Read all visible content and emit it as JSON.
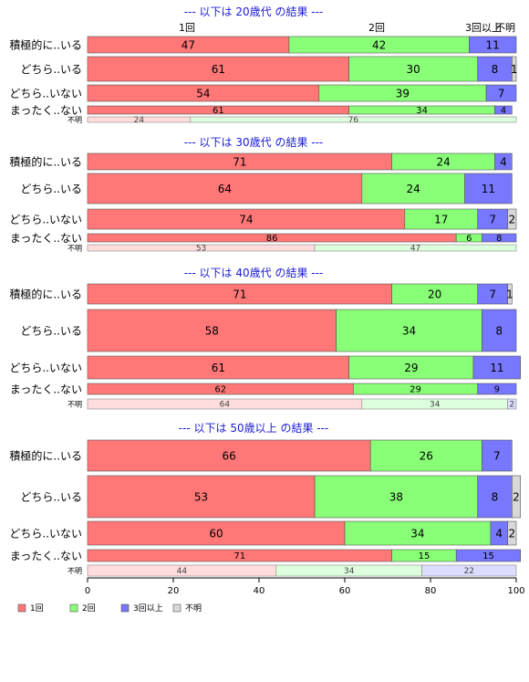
{
  "chart_data": {
    "type": "bar",
    "stacked": true,
    "orientation": "horizontal",
    "xlim": [
      0,
      100
    ],
    "xticks": [
      "0",
      "20",
      "40",
      "60",
      "80",
      "100"
    ],
    "grid": false,
    "legend_position": "bottom-left",
    "series_names": [
      "1回",
      "2回",
      "3回以上",
      "不明"
    ],
    "series_colors": [
      "#ff7777",
      "#88ff77",
      "#7777ff",
      "#d8d8d8"
    ],
    "light_colors": [
      "#ffdddd",
      "#ddffdd",
      "#ddddff",
      "#eeeeee"
    ],
    "top_series_labels": [
      "1回",
      "2回",
      "3回以上",
      "不明"
    ],
    "groups": [
      {
        "title": "--- 以下は 20歳代 の結果 ---",
        "rows": [
          {
            "label": "積極的に..いる",
            "values": [
              47,
              42,
              11,
              0
            ]
          },
          {
            "label": "どちら..いる",
            "values": [
              61,
              30,
              8,
              1
            ]
          },
          {
            "label": "どちら..いない",
            "values": [
              54,
              39,
              7,
              0
            ]
          },
          {
            "label": "まったく..ない",
            "values": [
              61,
              34,
              4,
              0
            ]
          },
          {
            "label": "不明",
            "values": [
              24,
              76,
              0,
              0
            ]
          }
        ]
      },
      {
        "title": "--- 以下は 30歳代 の結果 ---",
        "rows": [
          {
            "label": "積極的に..いる",
            "values": [
              71,
              24,
              4,
              0
            ]
          },
          {
            "label": "どちら..いる",
            "values": [
              64,
              24,
              11,
              0
            ]
          },
          {
            "label": "どちら..いない",
            "values": [
              74,
              17,
              7,
              2
            ]
          },
          {
            "label": "まったく..ない",
            "values": [
              86,
              6,
              8,
              0
            ]
          },
          {
            "label": "不明",
            "values": [
              53,
              47,
              0,
              0
            ]
          }
        ]
      },
      {
        "title": "--- 以下は 40歳代 の結果 ---",
        "rows": [
          {
            "label": "積極的に..いる",
            "values": [
              71,
              20,
              7,
              1
            ]
          },
          {
            "label": "どちら..いる",
            "values": [
              58,
              34,
              8,
              0
            ]
          },
          {
            "label": "どちら..いない",
            "values": [
              61,
              29,
              11,
              0
            ]
          },
          {
            "label": "まったく..ない",
            "values": [
              62,
              29,
              9,
              0
            ]
          },
          {
            "label": "不明",
            "values": [
              64,
              34,
              2,
              0
            ]
          }
        ]
      },
      {
        "title": "--- 以下は 50歳以上 の結果 ---",
        "rows": [
          {
            "label": "積極的に..いる",
            "values": [
              66,
              26,
              7,
              0
            ]
          },
          {
            "label": "どちら..いる",
            "values": [
              53,
              38,
              8,
              2
            ]
          },
          {
            "label": "どちら..いない",
            "values": [
              60,
              34,
              4,
              2
            ]
          },
          {
            "label": "まったく..ない",
            "values": [
              71,
              15,
              15,
              0
            ]
          },
          {
            "label": "不明",
            "values": [
              44,
              34,
              22,
              0
            ]
          }
        ]
      }
    ]
  }
}
